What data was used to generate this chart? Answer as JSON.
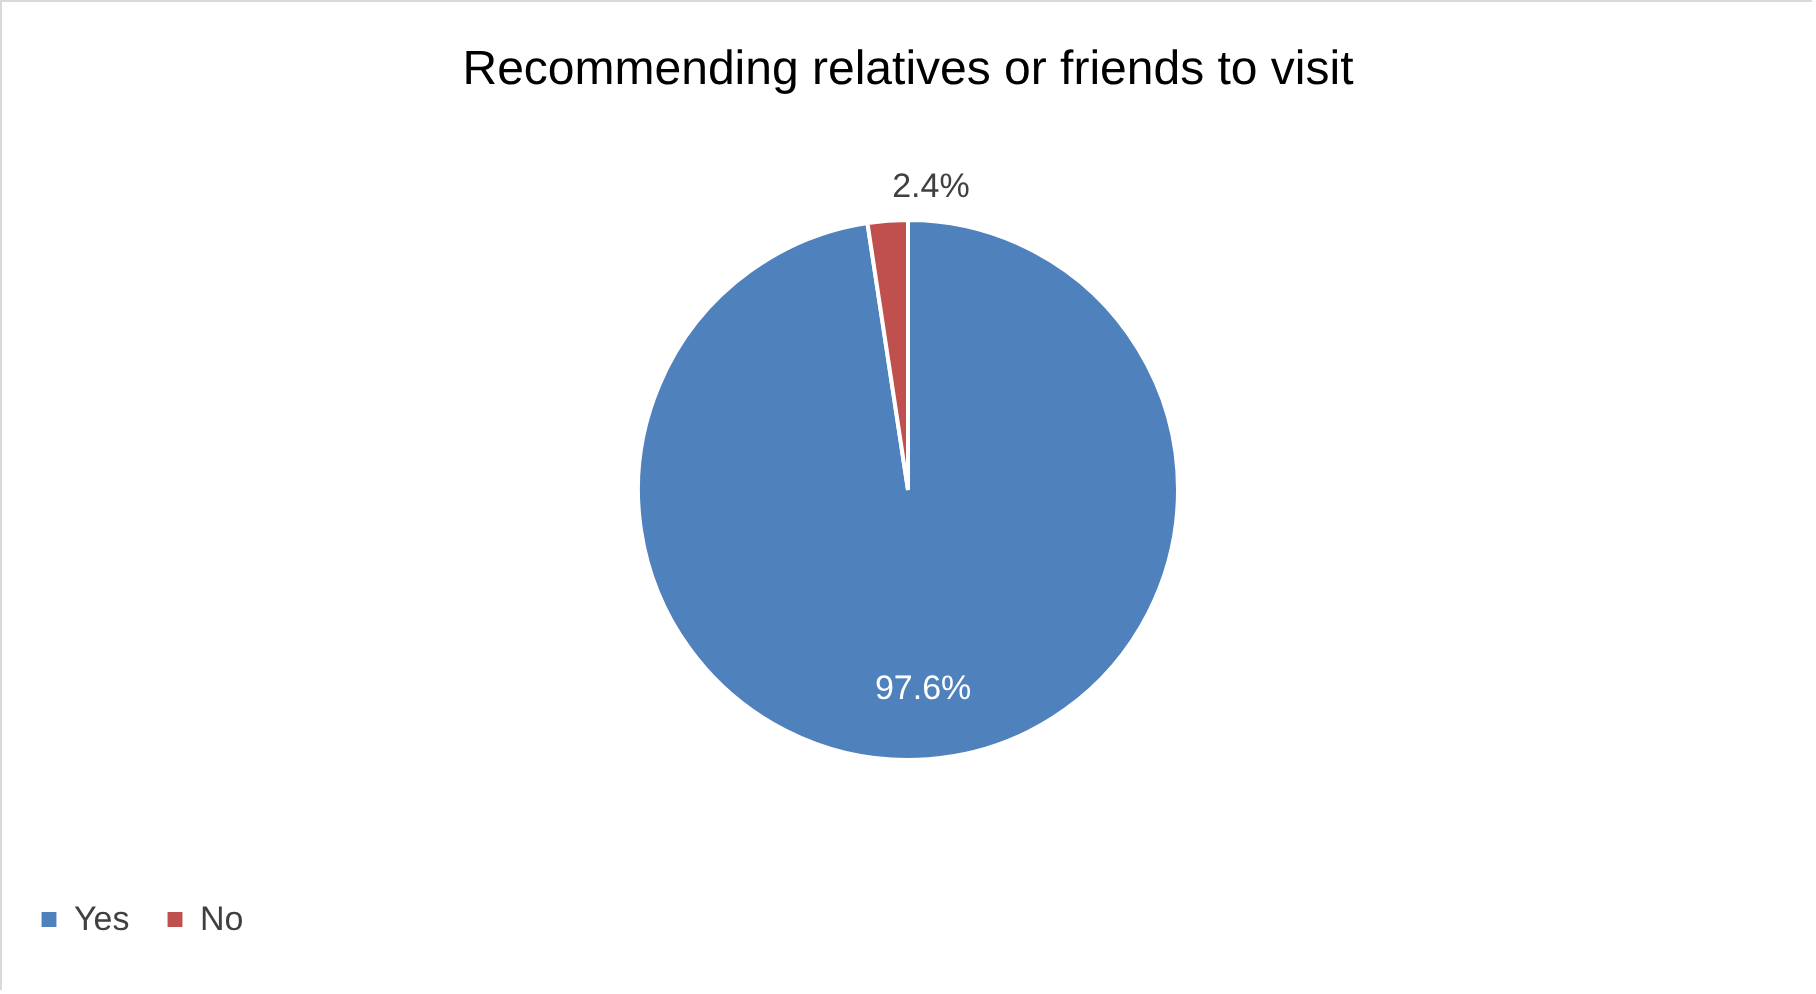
{
  "chart_data": {
    "type": "pie",
    "title": "Recommending relatives or friends to visit",
    "categories": [
      "Yes",
      "No"
    ],
    "values": [
      97.6,
      2.4
    ],
    "colors": [
      "#4f81bd",
      "#c0504d"
    ],
    "value_labels": [
      "97.6%",
      "2.4%"
    ],
    "legend": "bottom"
  }
}
